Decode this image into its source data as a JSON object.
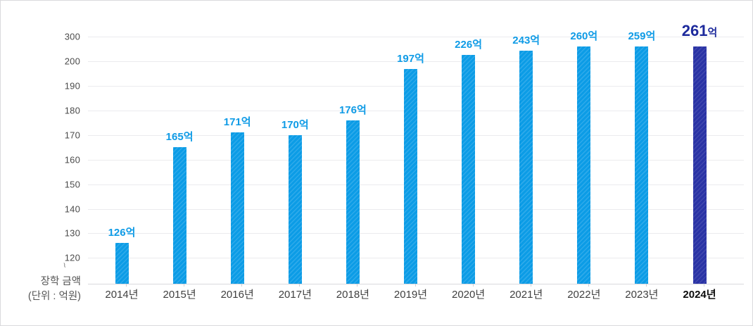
{
  "chart_data": {
    "type": "bar",
    "title": "",
    "categories": [
      "2014년",
      "2015년",
      "2016년",
      "2017년",
      "2018년",
      "2019년",
      "2020년",
      "2021년",
      "2022년",
      "2023년",
      "2024년"
    ],
    "values": [
      126,
      165,
      171,
      170,
      176,
      197,
      226,
      243,
      260,
      259,
      261
    ],
    "value_suffix": "억",
    "highlight_index": 10,
    "highlight_category": "2024년",
    "y_ticks": [
      300,
      200,
      190,
      180,
      170,
      160,
      150,
      140,
      130,
      120
    ],
    "axis_break": true,
    "axis_break_mark": "~",
    "ylabel_line1": "장학 금액",
    "ylabel_line2": "(단위 : 억원)",
    "grid": "horizontal",
    "legend_position": "none",
    "ylim": [
      120,
      300
    ],
    "colors": {
      "bar": "#0c9ce6",
      "bar_highlight": "#2a33a5",
      "value_label": "#0f9be6",
      "value_label_highlight": "#1d2a9c",
      "gridline": "#ebebee",
      "axis_text": "#4b4b4b",
      "xlabel_text": "#3f3f3f",
      "xlabel_highlight_text": "#0c0c0c",
      "panel_border": "#d9d9dc"
    }
  }
}
